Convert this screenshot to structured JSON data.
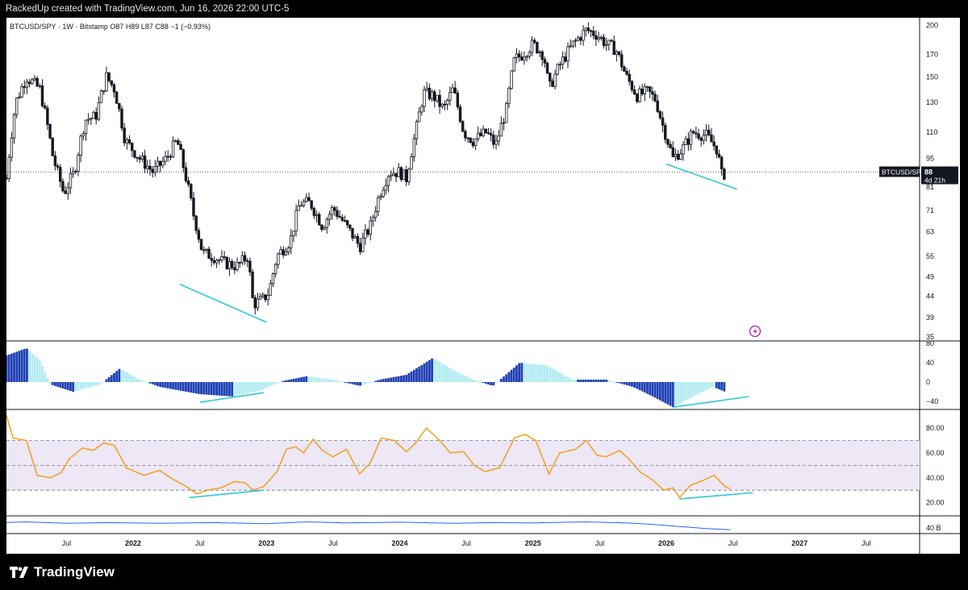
{
  "header": {
    "attribution": "RackedUp created with TradingView.com, Jun 16, 2026 22:00 UTC-5"
  },
  "footer": {
    "brand": "TradingView"
  },
  "chart_data": [
    {
      "type": "candlestick",
      "pane": "price",
      "legend": {
        "symbol": "BTCUSD/SPY",
        "interval": "1W",
        "exchange": "Bitstamp",
        "ohlc": "O87 H89 L87 C88 −1 (−0.93%)"
      },
      "x_ticks": [
        "Jul",
        "2022",
        "Jul",
        "2023",
        "Jul",
        "2024",
        "Jul",
        "2025",
        "Jul",
        "2026",
        "Jul",
        "2027",
        "Jul"
      ],
      "x_tick_dates": [
        2021.5,
        2022.0,
        2022.5,
        2023.0,
        2023.5,
        2024.0,
        2024.5,
        2025.0,
        2025.5,
        2026.0,
        2026.5,
        2027.0,
        2027.5
      ],
      "x_range": [
        2021.05,
        2027.9
      ],
      "scale": "log",
      "y_ticks": [
        "200",
        "170",
        "150",
        "130",
        "110",
        "95",
        "81",
        "71",
        "63",
        "55",
        "49",
        "44",
        "39",
        "35"
      ],
      "y_range": [
        35,
        205
      ],
      "last_price_label": {
        "symbol": "BTCUSD/SPY",
        "value": "88",
        "countdown": "4d 21h"
      },
      "last_price": 88,
      "path": [
        [
          2021.05,
          85
        ],
        [
          2021.12,
          130
        ],
        [
          2021.2,
          150
        ],
        [
          2021.3,
          140
        ],
        [
          2021.4,
          95
        ],
        [
          2021.48,
          78
        ],
        [
          2021.56,
          88
        ],
        [
          2021.64,
          118
        ],
        [
          2021.72,
          120
        ],
        [
          2021.8,
          150
        ],
        [
          2021.86,
          140
        ],
        [
          2021.94,
          105
        ],
        [
          2022.05,
          95
        ],
        [
          2022.15,
          88
        ],
        [
          2022.25,
          95
        ],
        [
          2022.33,
          105
        ],
        [
          2022.38,
          90
        ],
        [
          2022.45,
          70
        ],
        [
          2022.52,
          56
        ],
        [
          2022.6,
          55
        ],
        [
          2022.68,
          53
        ],
        [
          2022.78,
          52
        ],
        [
          2022.86,
          55
        ],
        [
          2022.9,
          42
        ],
        [
          2022.97,
          43
        ],
        [
          2023.02,
          45
        ],
        [
          2023.08,
          55
        ],
        [
          2023.18,
          60
        ],
        [
          2023.25,
          74
        ],
        [
          2023.33,
          74
        ],
        [
          2023.42,
          65
        ],
        [
          2023.5,
          72
        ],
        [
          2023.6,
          65
        ],
        [
          2023.7,
          58
        ],
        [
          2023.78,
          65
        ],
        [
          2023.85,
          78
        ],
        [
          2023.92,
          88
        ],
        [
          2024.0,
          88
        ],
        [
          2024.05,
          85
        ],
        [
          2024.12,
          110
        ],
        [
          2024.18,
          137
        ],
        [
          2024.25,
          135
        ],
        [
          2024.33,
          125
        ],
        [
          2024.4,
          140
        ],
        [
          2024.48,
          110
        ],
        [
          2024.55,
          105
        ],
        [
          2024.65,
          110
        ],
        [
          2024.72,
          102
        ],
        [
          2024.8,
          125
        ],
        [
          2024.86,
          165
        ],
        [
          2024.92,
          170
        ],
        [
          2025.0,
          180
        ],
        [
          2025.08,
          170
        ],
        [
          2025.12,
          140
        ],
        [
          2025.2,
          160
        ],
        [
          2025.3,
          180
        ],
        [
          2025.4,
          195
        ],
        [
          2025.48,
          190
        ],
        [
          2025.55,
          180
        ],
        [
          2025.62,
          175
        ],
        [
          2025.7,
          150
        ],
        [
          2025.78,
          135
        ],
        [
          2025.86,
          138
        ],
        [
          2025.92,
          132
        ],
        [
          2025.97,
          115
        ],
        [
          2026.05,
          95
        ],
        [
          2026.12,
          100
        ],
        [
          2026.2,
          110
        ],
        [
          2026.3,
          108
        ],
        [
          2026.38,
          100
        ],
        [
          2026.42,
          85
        ],
        [
          2026.44,
          88
        ]
      ],
      "annotations": [
        {
          "type": "trendline",
          "color": "#2ec8d6",
          "points": [
            [
              2022.35,
              47
            ],
            [
              2023.0,
              38
            ]
          ]
        },
        {
          "type": "trendline",
          "color": "#2ec8d6",
          "points": [
            [
              2026.0,
              92
            ],
            [
              2026.53,
              80
            ]
          ]
        }
      ]
    },
    {
      "type": "bar",
      "pane": "histogram",
      "y_ticks": [
        "80",
        "40",
        "0",
        "−40"
      ],
      "y_range": [
        -55,
        85
      ],
      "key_points": [
        [
          2021.05,
          55
        ],
        [
          2021.2,
          70
        ],
        [
          2021.3,
          45
        ],
        [
          2021.38,
          -5
        ],
        [
          2021.55,
          -20
        ],
        [
          2021.75,
          -5
        ],
        [
          2021.9,
          28
        ],
        [
          2022.05,
          5
        ],
        [
          2022.2,
          -10
        ],
        [
          2022.5,
          -25
        ],
        [
          2022.75,
          -30
        ],
        [
          2022.95,
          -18
        ],
        [
          2023.12,
          2
        ],
        [
          2023.3,
          12
        ],
        [
          2023.5,
          5
        ],
        [
          2023.7,
          -8
        ],
        [
          2023.85,
          5
        ],
        [
          2024.05,
          15
        ],
        [
          2024.25,
          50
        ],
        [
          2024.4,
          25
        ],
        [
          2024.55,
          5
        ],
        [
          2024.7,
          -8
        ],
        [
          2024.9,
          40
        ],
        [
          2025.1,
          35
        ],
        [
          2025.3,
          5
        ],
        [
          2025.55,
          5
        ],
        [
          2025.75,
          -10
        ],
        [
          2025.9,
          -30
        ],
        [
          2026.05,
          -52
        ],
        [
          2026.2,
          -30
        ],
        [
          2026.35,
          -10
        ],
        [
          2026.44,
          -20
        ]
      ],
      "annotations": [
        {
          "type": "trendline",
          "color": "#2ec8d6",
          "points": [
            [
              2022.5,
              -42
            ],
            [
              2022.98,
              -22
            ]
          ]
        },
        {
          "type": "trendline",
          "color": "#2ec8d6",
          "points": [
            [
              2026.05,
              -52
            ],
            [
              2026.62,
              -30
            ]
          ]
        }
      ]
    },
    {
      "type": "line",
      "pane": "rsi",
      "y_ticks": [
        "80.00",
        "60.00",
        "40.00",
        "20.00"
      ],
      "y_range": [
        10,
        95
      ],
      "band": [
        30,
        70
      ],
      "midline": 50,
      "values": [
        [
          2021.02,
          82
        ],
        [
          2021.05,
          90
        ],
        [
          2021.1,
          72
        ],
        [
          2021.2,
          70
        ],
        [
          2021.28,
          42
        ],
        [
          2021.38,
          40
        ],
        [
          2021.46,
          44
        ],
        [
          2021.52,
          55
        ],
        [
          2021.62,
          64
        ],
        [
          2021.7,
          62
        ],
        [
          2021.78,
          68
        ],
        [
          2021.86,
          66
        ],
        [
          2021.95,
          48
        ],
        [
          2022.08,
          42
        ],
        [
          2022.2,
          46
        ],
        [
          2022.28,
          40
        ],
        [
          2022.4,
          33
        ],
        [
          2022.48,
          27
        ],
        [
          2022.56,
          30
        ],
        [
          2022.66,
          32
        ],
        [
          2022.76,
          37
        ],
        [
          2022.84,
          36
        ],
        [
          2022.9,
          30
        ],
        [
          2022.98,
          33
        ],
        [
          2023.08,
          45
        ],
        [
          2023.15,
          63
        ],
        [
          2023.22,
          65
        ],
        [
          2023.28,
          60
        ],
        [
          2023.35,
          71
        ],
        [
          2023.42,
          62
        ],
        [
          2023.5,
          57
        ],
        [
          2023.6,
          63
        ],
        [
          2023.7,
          43
        ],
        [
          2023.78,
          52
        ],
        [
          2023.86,
          72
        ],
        [
          2023.96,
          70
        ],
        [
          2024.05,
          61
        ],
        [
          2024.12,
          68
        ],
        [
          2024.2,
          80
        ],
        [
          2024.3,
          70
        ],
        [
          2024.38,
          60
        ],
        [
          2024.48,
          61
        ],
        [
          2024.56,
          50
        ],
        [
          2024.64,
          45
        ],
        [
          2024.75,
          48
        ],
        [
          2024.86,
          72
        ],
        [
          2024.94,
          75
        ],
        [
          2025.02,
          70
        ],
        [
          2025.12,
          43
        ],
        [
          2025.2,
          60
        ],
        [
          2025.32,
          63
        ],
        [
          2025.4,
          70
        ],
        [
          2025.48,
          58
        ],
        [
          2025.55,
          57
        ],
        [
          2025.65,
          62
        ],
        [
          2025.72,
          55
        ],
        [
          2025.8,
          45
        ],
        [
          2025.9,
          38
        ],
        [
          2025.98,
          30
        ],
        [
          2026.05,
          32
        ],
        [
          2026.1,
          24
        ],
        [
          2026.18,
          34
        ],
        [
          2026.28,
          38
        ],
        [
          2026.36,
          42
        ],
        [
          2026.44,
          33
        ],
        [
          2026.48,
          31
        ]
      ],
      "annotations": [
        {
          "type": "trendline",
          "color": "#2ec8d6",
          "points": [
            [
              2022.42,
              24
            ],
            [
              2022.98,
              30
            ]
          ]
        },
        {
          "type": "trendline",
          "color": "#2ec8d6",
          "points": [
            [
              2026.1,
              23
            ],
            [
              2026.65,
              28
            ]
          ]
        }
      ]
    },
    {
      "type": "line",
      "pane": "volume",
      "y_ticks": [
        "40 B"
      ],
      "values": [
        [
          2021.02,
          0.62
        ],
        [
          2021.2,
          0.66
        ],
        [
          2021.5,
          0.58
        ],
        [
          2021.8,
          0.62
        ],
        [
          2022.2,
          0.58
        ],
        [
          2022.6,
          0.62
        ],
        [
          2023.0,
          0.56
        ],
        [
          2023.3,
          0.66
        ],
        [
          2023.6,
          0.6
        ],
        [
          2024.0,
          0.64
        ],
        [
          2024.4,
          0.58
        ],
        [
          2024.7,
          0.62
        ],
        [
          2025.0,
          0.6
        ],
        [
          2025.4,
          0.66
        ],
        [
          2025.7,
          0.6
        ],
        [
          2025.9,
          0.52
        ],
        [
          2026.1,
          0.4
        ],
        [
          2026.3,
          0.28
        ],
        [
          2026.48,
          0.22
        ]
      ]
    }
  ],
  "colors": {
    "candle": "#131722",
    "histogram_light": "#b2ebf2",
    "histogram_dark": "#1e3fb4",
    "rsi_line": "#f59f1c",
    "rsi_band": "#ede7f6",
    "trendline": "#2ec8d6",
    "volume_line": "#2962ff"
  },
  "icons": {
    "alert": "lightning-alert-icon",
    "logo": "tradingview-logo-icon"
  }
}
